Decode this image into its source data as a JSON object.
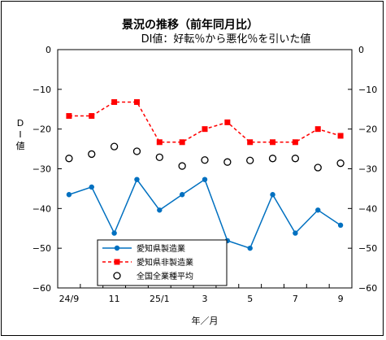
{
  "chart_data": {
    "type": "line",
    "title": "景況の推移（前年同月比）",
    "subtitle": "DI値：好転％から悪化％を引いた値",
    "ylabel": "DI値",
    "xlabel": "年／月",
    "ylim": [
      -60,
      0
    ],
    "yticks": [
      0,
      -10,
      -20,
      -30,
      -40,
      -50,
      -60
    ],
    "x_tick_labels": [
      "24/9",
      "",
      "11",
      "",
      "25/1",
      "",
      "3",
      "",
      "5",
      "",
      "7",
      "",
      "9"
    ],
    "grid": false,
    "legend_position": "bottom-left",
    "series": [
      {
        "name": "愛知県製造業",
        "style": "solid-line-circle",
        "color": "#0070C0",
        "values": [
          -36.5,
          -34.6,
          -46.2,
          -32.7,
          -40.4,
          -36.5,
          -32.7,
          -48.1,
          -50.0,
          -36.5,
          -46.2,
          -40.4,
          -44.2
        ]
      },
      {
        "name": "愛知県非製造業",
        "style": "dashed-line-square",
        "color": "#FF0000",
        "values": [
          -16.7,
          -16.7,
          -13.2,
          -13.2,
          -23.3,
          -23.3,
          -20.0,
          -18.3,
          -23.3,
          -23.3,
          -23.3,
          -20.0,
          -21.7
        ]
      },
      {
        "name": "全国全業種平均",
        "style": "open-circle-marker",
        "color": "#000000",
        "values": [
          -27.4,
          -26.3,
          -24.4,
          -25.6,
          -27.1,
          -29.3,
          -27.8,
          -28.3,
          -27.9,
          -27.4,
          -27.4,
          -29.7,
          -28.6
        ]
      }
    ]
  }
}
